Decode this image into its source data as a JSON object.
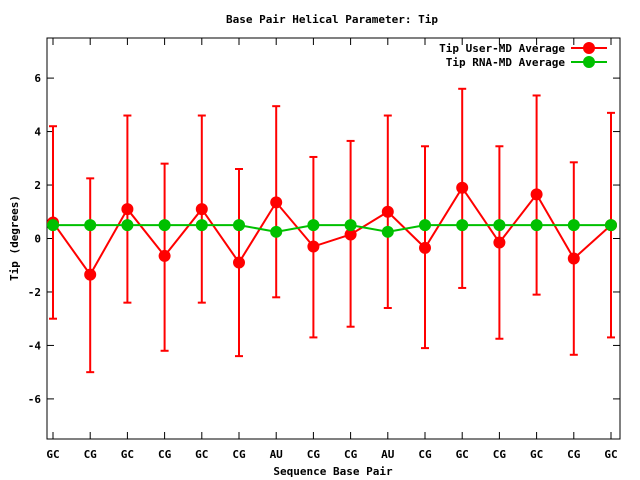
{
  "chart_data": {
    "type": "line",
    "title": "Base Pair Helical Parameter: Tip",
    "xlabel": "Sequence Base Pair",
    "ylabel": "Tip (degrees)",
    "categories": [
      "GC",
      "CG",
      "GC",
      "CG",
      "GC",
      "CG",
      "AU",
      "CG",
      "CG",
      "AU",
      "CG",
      "GC",
      "CG",
      "GC",
      "CG",
      "GC"
    ],
    "ylim": [
      -7.5,
      7.5
    ],
    "yticks": [
      -6,
      -4,
      -2,
      0,
      2,
      4,
      6
    ],
    "grid": false,
    "legend_position": "top-right",
    "series": [
      {
        "name": "Tip User-MD Average",
        "color": "#ff0000",
        "marker": "circle",
        "values": [
          0.6,
          -1.35,
          1.1,
          -0.65,
          1.1,
          -0.9,
          1.35,
          -0.3,
          0.15,
          1.0,
          -0.35,
          1.9,
          -0.15,
          1.65,
          -0.75,
          0.5
        ],
        "error_low": [
          -3.0,
          -5.0,
          -2.4,
          -4.2,
          -2.4,
          -4.4,
          -2.2,
          -3.7,
          -3.3,
          -2.6,
          -4.1,
          -1.85,
          -3.75,
          -2.1,
          -4.35,
          -3.7
        ],
        "error_high": [
          4.2,
          2.25,
          4.6,
          2.8,
          4.6,
          2.6,
          4.95,
          3.05,
          3.65,
          4.6,
          3.45,
          5.6,
          3.45,
          5.35,
          2.85,
          4.7
        ]
      },
      {
        "name": "Tip RNA-MD Average",
        "color": "#00c000",
        "marker": "circle",
        "values": [
          0.5,
          0.5,
          0.5,
          0.5,
          0.5,
          0.5,
          0.25,
          0.5,
          0.5,
          0.25,
          0.5,
          0.5,
          0.5,
          0.5,
          0.5,
          0.5
        ]
      }
    ]
  }
}
